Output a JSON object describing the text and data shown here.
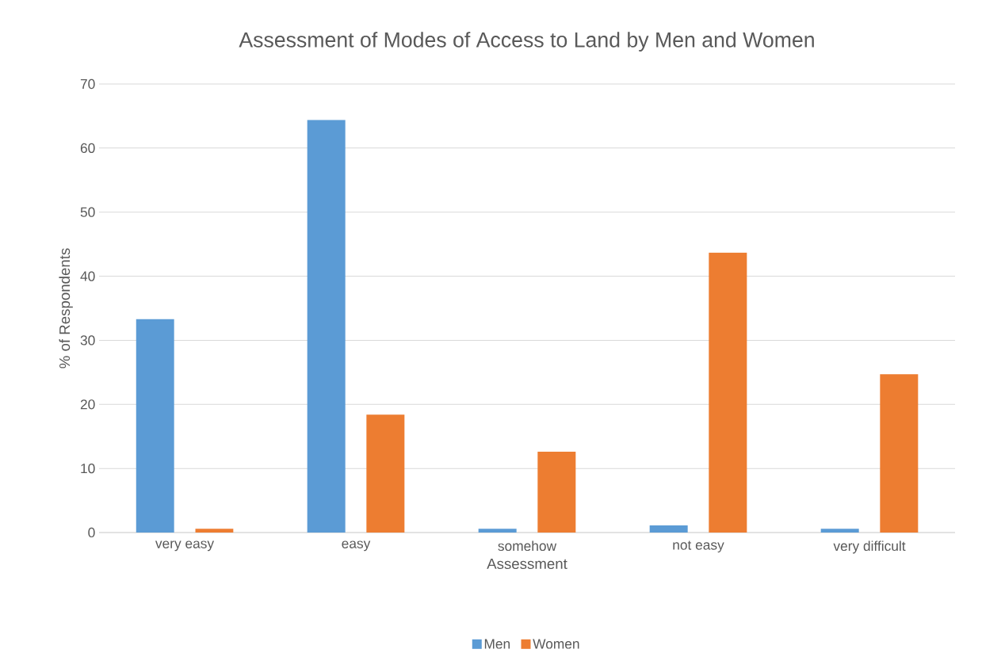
{
  "chart_data": {
    "type": "bar",
    "title": "Assessment of Modes of Access to Land by Men and Women",
    "xlabel": "Assessment",
    "ylabel": "% of Respondents",
    "categories": [
      "very easy",
      "easy",
      "somehow",
      "not easy",
      "very difficult"
    ],
    "series": [
      {
        "name": "Men",
        "color": "#5b9bd5",
        "values": [
          33.3,
          64.4,
          0.6,
          1.1,
          0.6
        ]
      },
      {
        "name": "Women",
        "color": "#ed7d31",
        "values": [
          0.6,
          18.4,
          12.6,
          43.7,
          24.7
        ]
      }
    ],
    "ylim": [
      0,
      70
    ],
    "yticks": [
      0,
      10,
      20,
      30,
      40,
      50,
      60,
      70
    ],
    "grid": "y",
    "legend": "bottom"
  }
}
